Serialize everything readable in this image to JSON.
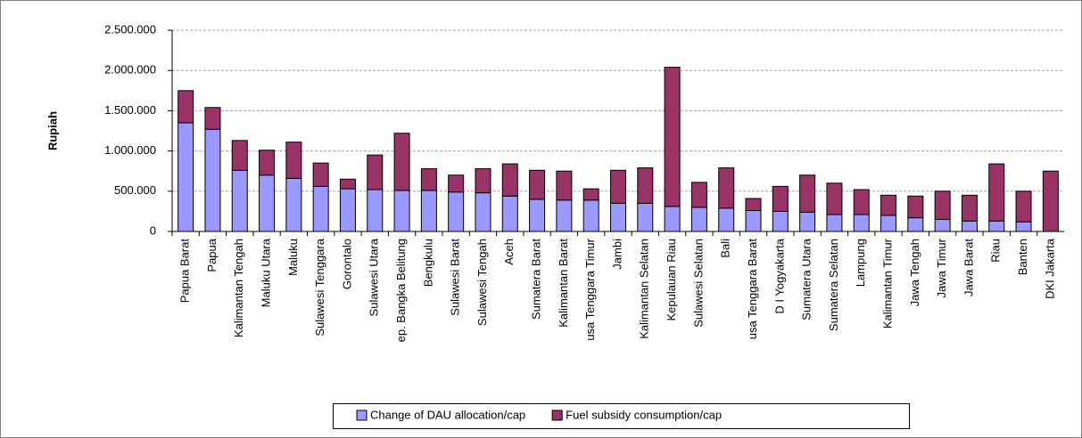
{
  "chart_data": {
    "type": "stacked_bar",
    "y_label": "Rupiah",
    "categories": [
      "Papua Barat",
      "Papua",
      "Kalimantan Tengah",
      "Maluku Utara",
      "Maluku",
      "Sulawesi Tenggara",
      "Gorontalo",
      "Sulawesi Utara",
      "ep. Bangka Belitung",
      "Bengkulu",
      "Sulawesi Barat",
      "Sulawesi Tengah",
      "Aceh",
      "Sumatera Barat",
      "Kalimantan Barat",
      "usa Tenggara Timur",
      "Jambi",
      "Kalimantan Selatan",
      "Kepulauan Riau",
      "Sulawesi Selatan",
      "Bali",
      "usa Tenggara Barat",
      "D I Yogyakarta",
      "Sumatera Utara",
      "Sumatera Selatan",
      "Lampung",
      "Kalimantan Timur",
      "Jawa Tengah",
      "Jawa Timur",
      "Jawa Barat",
      "Riau",
      "Banten",
      "DKI Jakarta"
    ],
    "series": [
      {
        "name": "Change of DAU allocation/cap",
        "color": "#9999ff",
        "values": [
          1350000,
          1270000,
          760000,
          700000,
          660000,
          560000,
          530000,
          520000,
          510000,
          510000,
          490000,
          480000,
          440000,
          400000,
          390000,
          390000,
          350000,
          350000,
          310000,
          300000,
          290000,
          260000,
          250000,
          240000,
          210000,
          210000,
          200000,
          170000,
          150000,
          130000,
          130000,
          120000,
          0
        ]
      },
      {
        "name": "Fuel subsidy consumption/cap",
        "color": "#993366",
        "values": [
          400000,
          270000,
          370000,
          310000,
          450000,
          290000,
          120000,
          430000,
          710000,
          270000,
          210000,
          300000,
          400000,
          360000,
          360000,
          140000,
          410000,
          440000,
          1730000,
          310000,
          500000,
          150000,
          310000,
          460000,
          390000,
          310000,
          250000,
          270000,
          350000,
          320000,
          710000,
          380000,
          750000
        ]
      }
    ],
    "ylim": [
      0,
      2500000
    ],
    "yticks": [
      0,
      {
        "value": 500000,
        "label": "500.000"
      },
      {
        "value": 1000000,
        "label": "1.000.000"
      },
      {
        "value": 1500000,
        "label": "1.500.000"
      },
      {
        "value": 2000000,
        "label": "2.000.000"
      },
      {
        "value": 2500000,
        "label": "2.500.000"
      }
    ],
    "grid": true,
    "legend": "bottom"
  }
}
